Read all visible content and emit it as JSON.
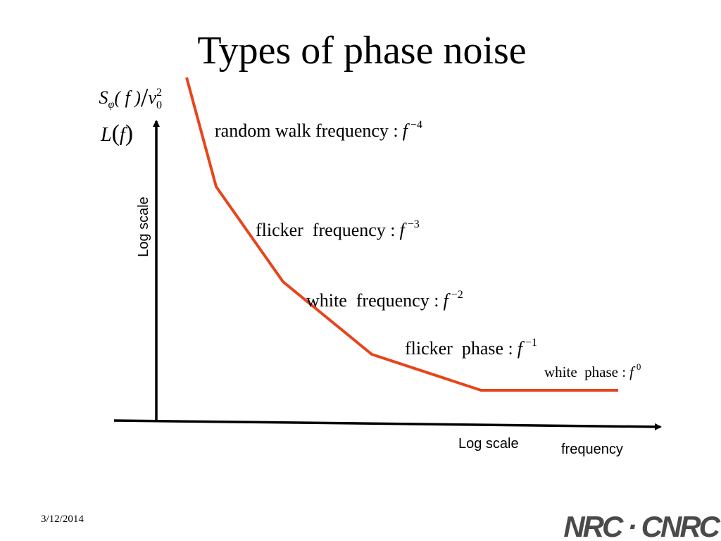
{
  "title": "Types of phase noise",
  "y_axis": {
    "expr1": [
      "S",
      "φ",
      "( f )",
      "/",
      "ν",
      "0",
      "2"
    ],
    "expr2": [
      "L",
      "(",
      "f",
      ")"
    ],
    "scale": "Log scale"
  },
  "x_axis": {
    "scale": "Log scale",
    "label": "frequency"
  },
  "regions": [
    {
      "label": "random walk frequency :",
      "base": "f",
      "exponent": "−4"
    },
    {
      "label": "flicker  frequency :",
      "base": "f",
      "exponent": "−3"
    },
    {
      "label": "white  frequency :",
      "base": "f",
      "exponent": "−2"
    },
    {
      "label": "flicker  phase :",
      "base": "f",
      "exponent": "−1"
    },
    {
      "label": "white  phase :",
      "base": "f",
      "exponent": "0"
    }
  ],
  "footer": {
    "date": "3/12/2014",
    "logo": "NRC · CNRC"
  }
}
